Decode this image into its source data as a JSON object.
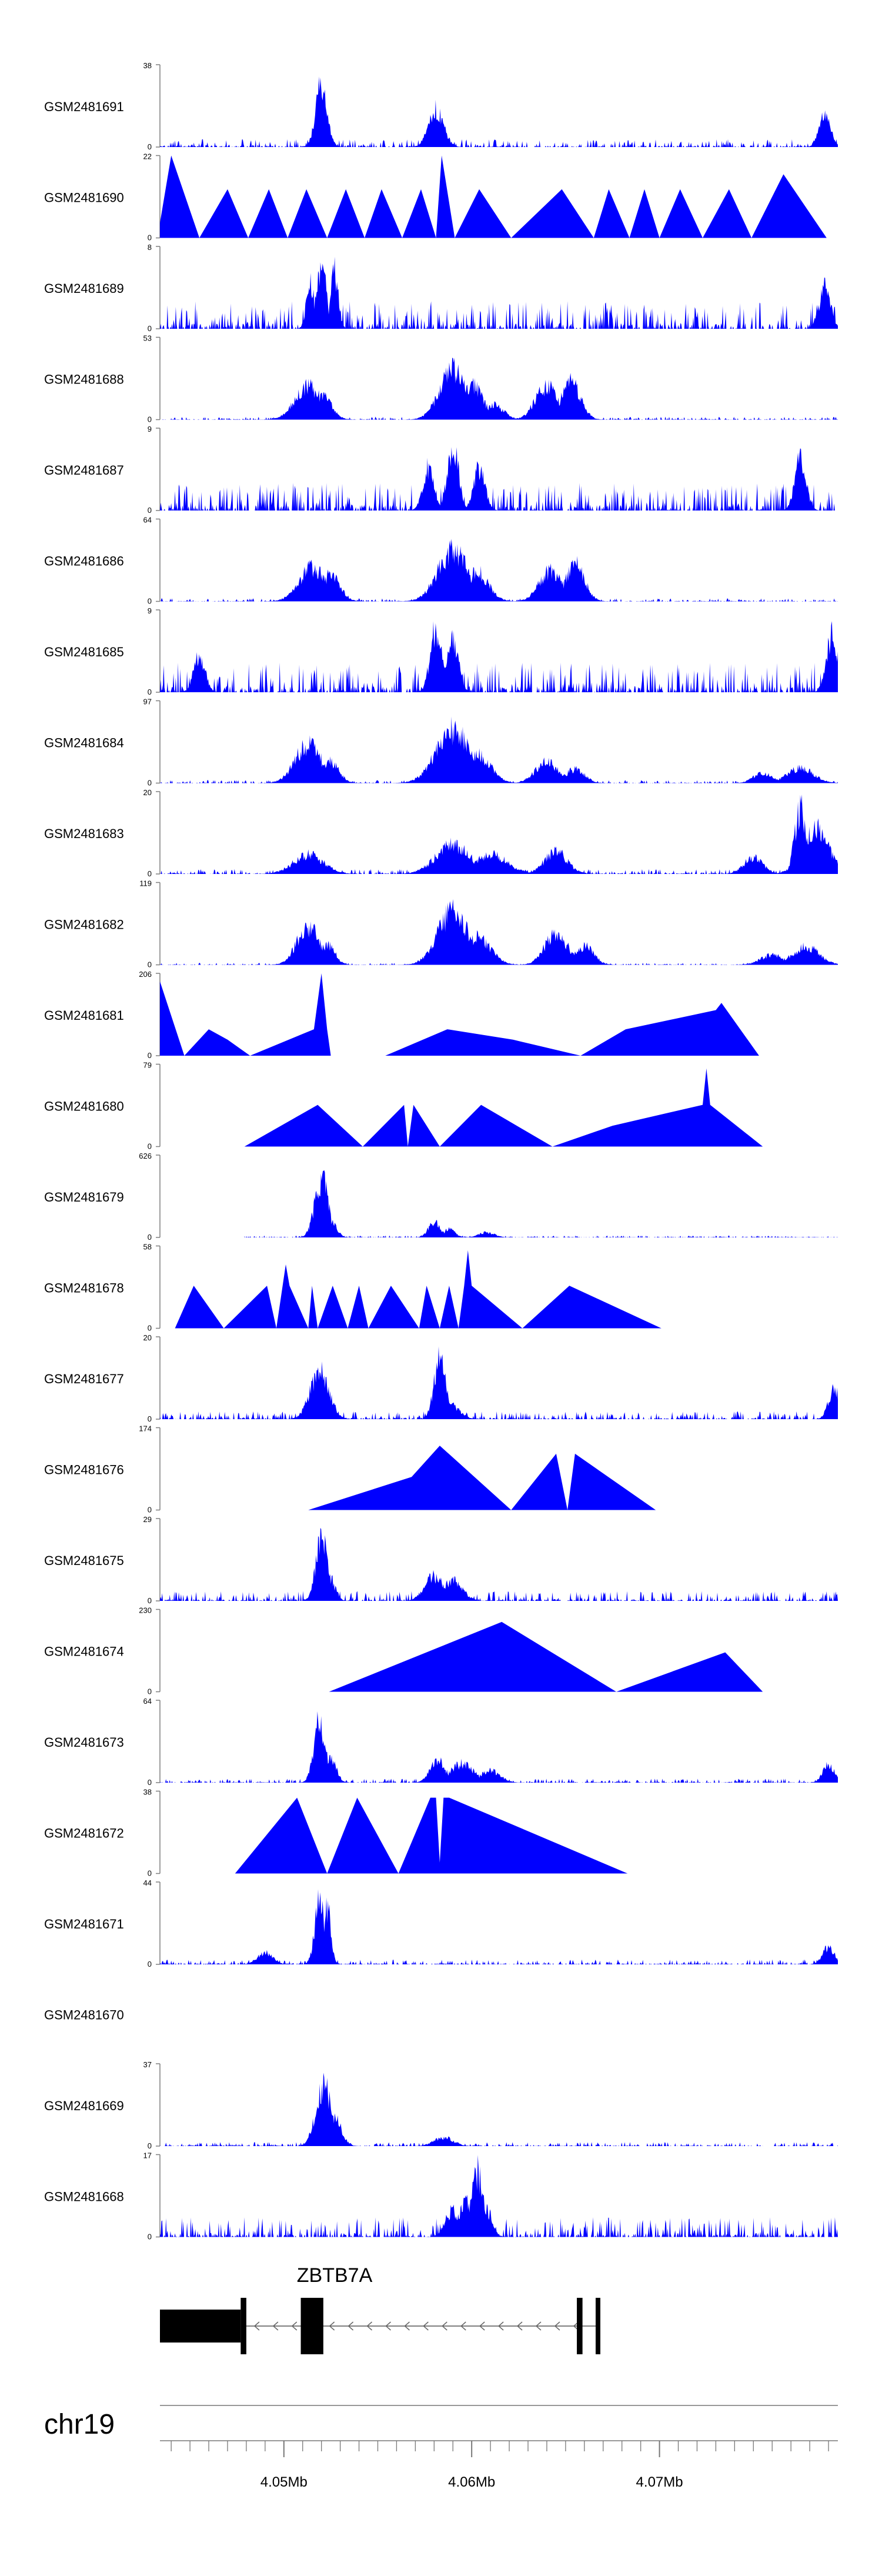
{
  "figure": {
    "region": {
      "chromosome": "chr19",
      "start": 4043400,
      "end": 4079500
    },
    "fill_color": "#0000ff",
    "axis_color": "#7f7f7f",
    "gene_color": "#000000",
    "gene": {
      "name": "ZBTB7A",
      "strand": "-"
    }
  },
  "chart_data": {
    "type": "area",
    "title": "",
    "xlabel": "",
    "ylabel": "",
    "x_ticks": [
      {
        "pos": 4050000,
        "label": "4.05Mb"
      },
      {
        "pos": 4060000,
        "label": "4.06Mb"
      },
      {
        "pos": 4070000,
        "label": "4.07Mb"
      }
    ],
    "tracks": [
      {
        "name": "GSM2481691",
        "max": 38,
        "style": "dense",
        "peaks": [
          [
            4052000,
            38,
            300
          ],
          [
            4058100,
            22,
            400
          ],
          [
            4078800,
            20,
            300
          ]
        ],
        "base": 0.08
      },
      {
        "name": "GSM2481690",
        "max": 22,
        "style": "sparse",
        "points": [
          [
            4043400,
            4
          ],
          [
            4044000,
            22
          ],
          [
            4045500,
            0
          ],
          [
            4047000,
            13
          ],
          [
            4048100,
            0
          ],
          [
            4049200,
            13
          ],
          [
            4050200,
            0
          ],
          [
            4051200,
            13
          ],
          [
            4052300,
            0
          ],
          [
            4053300,
            13
          ],
          [
            4054300,
            0
          ],
          [
            4055200,
            13
          ],
          [
            4056300,
            0
          ],
          [
            4057300,
            13
          ],
          [
            4058100,
            0
          ],
          [
            4058400,
            22
          ],
          [
            4059100,
            0
          ],
          [
            4060400,
            13
          ],
          [
            4062100,
            0
          ],
          [
            4064800,
            13
          ],
          [
            4066500,
            0
          ],
          [
            4067300,
            13
          ],
          [
            4068400,
            0
          ],
          [
            4069200,
            13
          ],
          [
            4070000,
            0
          ],
          [
            4071100,
            13
          ],
          [
            4072300,
            0
          ],
          [
            4073700,
            13
          ],
          [
            4074900,
            0
          ],
          [
            4076600,
            17
          ],
          [
            4078900,
            0
          ]
        ]
      },
      {
        "name": "GSM2481689",
        "max": 8,
        "style": "dense",
        "peaks": [
          [
            4052000,
            8,
            250
          ],
          [
            4052700,
            7,
            200
          ],
          [
            4051400,
            6,
            200
          ],
          [
            4078800,
            5,
            300
          ]
        ],
        "base": 0.28
      },
      {
        "name": "GSM2481688",
        "max": 53,
        "style": "dense",
        "peaks": [
          [
            4051300,
            27,
            700
          ],
          [
            4052000,
            20,
            500
          ],
          [
            4059000,
            41,
            700
          ],
          [
            4060000,
            28,
            600
          ],
          [
            4064000,
            27,
            600
          ],
          [
            4065300,
            31,
            500
          ],
          [
            4061200,
            12,
            500
          ]
        ],
        "base": 0.03
      },
      {
        "name": "GSM2481687",
        "max": 9,
        "style": "dense",
        "peaks": [
          [
            4059000,
            9,
            300
          ],
          [
            4057700,
            6,
            300
          ],
          [
            4060400,
            6,
            300
          ],
          [
            4077500,
            7,
            300
          ]
        ],
        "base": 0.28
      },
      {
        "name": "GSM2481686",
        "max": 64,
        "style": "dense",
        "peaks": [
          [
            4051500,
            33,
            700
          ],
          [
            4052500,
            26,
            500
          ],
          [
            4059000,
            50,
            800
          ],
          [
            4060300,
            29,
            600
          ],
          [
            4064200,
            30,
            600
          ],
          [
            4065500,
            37,
            500
          ]
        ],
        "base": 0.03
      },
      {
        "name": "GSM2481685",
        "max": 9,
        "style": "dense",
        "peaks": [
          [
            4058100,
            9,
            300
          ],
          [
            4059000,
            7,
            300
          ],
          [
            4079200,
            8,
            300
          ],
          [
            4045500,
            5,
            300
          ]
        ],
        "base": 0.3
      },
      {
        "name": "GSM2481684",
        "max": 97,
        "style": "dense",
        "peaks": [
          [
            4051300,
            57,
            700
          ],
          [
            4052400,
            33,
            500
          ],
          [
            4059000,
            79,
            900
          ],
          [
            4060300,
            42,
            700
          ],
          [
            4064000,
            32,
            600
          ],
          [
            4065500,
            21,
            500
          ],
          [
            4075500,
            15,
            500
          ],
          [
            4077500,
            22,
            700
          ]
        ],
        "base": 0.03
      },
      {
        "name": "GSM2481683",
        "max": 20,
        "style": "dense",
        "peaks": [
          [
            4051300,
            6,
            800
          ],
          [
            4059000,
            9,
            900
          ],
          [
            4061000,
            6,
            900
          ],
          [
            4064500,
            7,
            600
          ],
          [
            4077500,
            20,
            300
          ],
          [
            4078300,
            14,
            700
          ],
          [
            4075000,
            5,
            500
          ]
        ],
        "base": 0.05
      },
      {
        "name": "GSM2481682",
        "max": 119,
        "style": "dense",
        "peaks": [
          [
            4051300,
            70,
            600
          ],
          [
            4052300,
            38,
            400
          ],
          [
            4059000,
            96,
            800
          ],
          [
            4060300,
            50,
            700
          ],
          [
            4064500,
            58,
            600
          ],
          [
            4066000,
            34,
            500
          ],
          [
            4076000,
            18,
            600
          ],
          [
            4077800,
            33,
            700
          ]
        ],
        "base": 0.02
      },
      {
        "name": "GSM2481681",
        "max": 206,
        "style": "sparse",
        "points": [
          [
            4043400,
            186
          ],
          [
            4044700,
            0
          ],
          [
            4046000,
            66
          ],
          [
            4047000,
            40
          ],
          [
            4048200,
            0
          ],
          [
            4051600,
            66
          ],
          [
            4052000,
            206
          ],
          [
            4052300,
            66
          ],
          [
            4052500,
            0
          ],
          [
            4055400,
            0
          ],
          [
            4058700,
            66
          ],
          [
            4062200,
            40
          ],
          [
            4065800,
            0
          ],
          [
            4068200,
            66
          ],
          [
            4073000,
            114
          ],
          [
            4073300,
            132
          ],
          [
            4075300,
            0
          ]
        ]
      },
      {
        "name": "GSM2481680",
        "max": 79,
        "style": "sparse",
        "points": [
          [
            4047900,
            0
          ],
          [
            4051800,
            40
          ],
          [
            4054200,
            0
          ],
          [
            4056400,
            40
          ],
          [
            4056600,
            0
          ],
          [
            4056900,
            40
          ],
          [
            4058300,
            0
          ],
          [
            4060500,
            40
          ],
          [
            4064300,
            0
          ],
          [
            4067500,
            20
          ],
          [
            4072300,
            40
          ],
          [
            4072500,
            75
          ],
          [
            4072700,
            40
          ],
          [
            4075500,
            0
          ]
        ]
      },
      {
        "name": "GSM2481679",
        "max": 626,
        "style": "dense",
        "peaks": [
          [
            4052000,
            580,
            350
          ],
          [
            4052500,
            150,
            300
          ],
          [
            4058000,
            150,
            300
          ],
          [
            4058800,
            80,
            300
          ],
          [
            4060800,
            50,
            400
          ]
        ],
        "base": 0.02,
        "start": 4047900
      },
      {
        "name": "GSM2481678",
        "max": 58,
        "style": "sparse",
        "points": [
          [
            4044200,
            0
          ],
          [
            4045200,
            30
          ],
          [
            4046800,
            0
          ],
          [
            4049100,
            30
          ],
          [
            4049600,
            0
          ],
          [
            4050100,
            45
          ],
          [
            4050300,
            30
          ],
          [
            4051300,
            0
          ],
          [
            4051500,
            30
          ],
          [
            4051800,
            0
          ],
          [
            4052600,
            30
          ],
          [
            4053400,
            0
          ],
          [
            4054000,
            30
          ],
          [
            4054500,
            0
          ],
          [
            4055700,
            30
          ],
          [
            4057200,
            0
          ],
          [
            4057600,
            30
          ],
          [
            4058300,
            0
          ],
          [
            4058800,
            30
          ],
          [
            4059300,
            0
          ],
          [
            4059600,
            30
          ],
          [
            4059800,
            55
          ],
          [
            4060000,
            30
          ],
          [
            4062700,
            0
          ],
          [
            4065200,
            30
          ],
          [
            4070100,
            0
          ]
        ]
      },
      {
        "name": "GSM2481677",
        "max": 20,
        "style": "dense",
        "peaks": [
          [
            4051900,
            15,
            500
          ],
          [
            4058300,
            19,
            300
          ],
          [
            4079300,
            9,
            300
          ],
          [
            4058800,
            5,
            500
          ]
        ],
        "base": 0.08
      },
      {
        "name": "GSM2481676",
        "max": 174,
        "style": "sparse",
        "points": [
          [
            4051300,
            0
          ],
          [
            4056800,
            70
          ],
          [
            4058300,
            136
          ],
          [
            4062100,
            0
          ],
          [
            4064500,
            119
          ],
          [
            4065100,
            0
          ],
          [
            4065500,
            119
          ],
          [
            4069800,
            0
          ]
        ]
      },
      {
        "name": "GSM2481675",
        "max": 29,
        "style": "dense",
        "peaks": [
          [
            4052000,
            28,
            300
          ],
          [
            4052400,
            11,
            300
          ],
          [
            4058000,
            11,
            500
          ],
          [
            4059000,
            9,
            500
          ]
        ],
        "base": 0.1
      },
      {
        "name": "GSM2481674",
        "max": 230,
        "style": "sparse",
        "points": [
          [
            4052400,
            0
          ],
          [
            4061600,
            195
          ],
          [
            4067700,
            0
          ],
          [
            4073500,
            110
          ],
          [
            4075500,
            0
          ]
        ]
      },
      {
        "name": "GSM2481673",
        "max": 64,
        "style": "dense",
        "peaks": [
          [
            4051900,
            62,
            300
          ],
          [
            4052500,
            22,
            300
          ],
          [
            4058200,
            22,
            400
          ],
          [
            4059500,
            19,
            600
          ],
          [
            4061000,
            12,
            500
          ],
          [
            4079000,
            18,
            300
          ]
        ],
        "base": 0.04
      },
      {
        "name": "GSM2481672",
        "max": 38,
        "style": "sparse",
        "points": [
          [
            4047400,
            0
          ],
          [
            4050700,
            35
          ],
          [
            4052300,
            0
          ],
          [
            4053900,
            35
          ],
          [
            4056100,
            0
          ],
          [
            4057800,
            35
          ],
          [
            4058100,
            35
          ],
          [
            4058300,
            5
          ],
          [
            4058500,
            35
          ],
          [
            4058800,
            35
          ],
          [
            4068300,
            0
          ]
        ]
      },
      {
        "name": "GSM2481671",
        "max": 44,
        "style": "dense",
        "peaks": [
          [
            4051900,
            44,
            250
          ],
          [
            4052300,
            40,
            200
          ],
          [
            4049000,
            8,
            400
          ],
          [
            4079000,
            12,
            300
          ]
        ],
        "base": 0.05
      },
      {
        "name": "GSM2481670",
        "max": null,
        "style": "empty"
      },
      {
        "name": "GSM2481669",
        "max": 37,
        "style": "dense",
        "peaks": [
          [
            4052100,
            35,
            400
          ],
          [
            4052600,
            18,
            400
          ],
          [
            4058500,
            5,
            500
          ]
        ],
        "base": 0.04
      },
      {
        "name": "GSM2481668",
        "max": 17,
        "style": "dense",
        "peaks": [
          [
            4060300,
            17,
            300
          ],
          [
            4059700,
            10,
            300
          ],
          [
            4059000,
            7,
            400
          ],
          [
            4060800,
            7,
            300
          ]
        ],
        "base": 0.2
      }
    ],
    "gene_model": {
      "name": "ZBTB7A",
      "exons": [
        [
          4043400,
          4047700,
          "thick"
        ],
        [
          4047700,
          4048000,
          "tall"
        ],
        [
          4050900,
          4052100,
          "tall"
        ],
        [
          4065600,
          4065900,
          "tall"
        ],
        [
          4066600,
          4066800,
          "tall"
        ]
      ],
      "intron": [
        4048000,
        4066800
      ]
    }
  }
}
